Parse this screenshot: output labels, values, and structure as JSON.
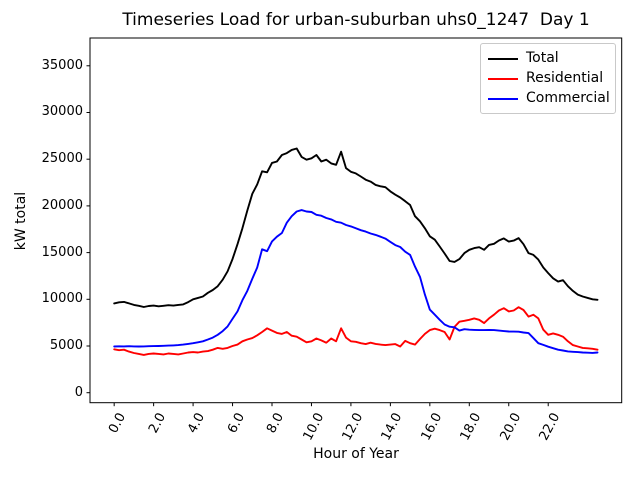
{
  "chart_data": {
    "type": "line",
    "title": "Timeseries Load for urban-suburban uhs0_1247  Day 1",
    "xlabel": "Hour of Year",
    "ylabel": "kW total",
    "grid": false,
    "legend_position": "upper right",
    "x_start": 0,
    "x_step": 0.25,
    "xlim": [
      -1.225,
      25.725
    ],
    "ylim": [
      -1070,
      37975
    ],
    "xtick_values": [
      0,
      2,
      4,
      6,
      8,
      10,
      12,
      14,
      16,
      18,
      20,
      22
    ],
    "xtick_labels": [
      "0.0",
      "2.0",
      "4.0",
      "6.0",
      "8.0",
      "10.0",
      "12.0",
      "14.0",
      "16.0",
      "18.0",
      "20.0",
      "22.0"
    ],
    "ytick_values": [
      0,
      5000,
      10000,
      15000,
      20000,
      25000,
      30000,
      35000
    ],
    "ytick_labels": [
      "0",
      "5000",
      "10000",
      "15000",
      "20000",
      "25000",
      "30000",
      "35000"
    ],
    "series": [
      {
        "name": "Total",
        "color": "#000000",
        "values": [
          9560,
          9680,
          9720,
          9560,
          9400,
          9300,
          9180,
          9280,
          9330,
          9250,
          9300,
          9370,
          9330,
          9400,
          9450,
          9700,
          10000,
          10150,
          10300,
          10700,
          11000,
          11400,
          12100,
          13000,
          14300,
          15900,
          17600,
          19500,
          21300,
          22300,
          23700,
          23600,
          24600,
          24750,
          25450,
          25650,
          26000,
          26150,
          25250,
          24950,
          25100,
          25450,
          24750,
          24950,
          24550,
          24400,
          25800,
          24050,
          23650,
          23480,
          23150,
          22800,
          22600,
          22250,
          22100,
          22000,
          21550,
          21200,
          20900,
          20500,
          20100,
          18900,
          18350,
          17600,
          16750,
          16380,
          15650,
          14900,
          14100,
          14000,
          14300,
          14950,
          15300,
          15480,
          15580,
          15300,
          15820,
          15940,
          16300,
          16520,
          16180,
          16280,
          16550,
          15900,
          14950,
          14750,
          14250,
          13400,
          12800,
          12250,
          11900,
          12050,
          11400,
          10900,
          10500,
          10300,
          10150,
          10000,
          9950
        ]
      },
      {
        "name": "Residential",
        "color": "#ff0000",
        "values": [
          4650,
          4550,
          4600,
          4400,
          4250,
          4150,
          4050,
          4150,
          4200,
          4150,
          4100,
          4200,
          4150,
          4100,
          4200,
          4300,
          4350,
          4300,
          4400,
          4450,
          4600,
          4800,
          4700,
          4800,
          5000,
          5150,
          5500,
          5700,
          5850,
          6150,
          6500,
          6900,
          6650,
          6400,
          6300,
          6500,
          6100,
          6000,
          5700,
          5400,
          5500,
          5800,
          5600,
          5350,
          5800,
          5500,
          6900,
          5900,
          5500,
          5450,
          5300,
          5200,
          5350,
          5220,
          5150,
          5100,
          5150,
          5200,
          4950,
          5550,
          5300,
          5150,
          5750,
          6300,
          6700,
          6850,
          6700,
          6500,
          5700,
          7050,
          7600,
          7700,
          7800,
          7950,
          7800,
          7450,
          7950,
          8350,
          8800,
          9050,
          8700,
          8800,
          9150,
          8850,
          8150,
          8350,
          7950,
          6750,
          6200,
          6350,
          6200,
          6000,
          5500,
          5100,
          4950,
          4800,
          4750,
          4700,
          4600
        ]
      },
      {
        "name": "Commercial",
        "color": "#0000ff",
        "values": [
          4950,
          4970,
          4960,
          4980,
          4960,
          4950,
          4960,
          4980,
          4990,
          5000,
          5020,
          5040,
          5060,
          5100,
          5150,
          5220,
          5300,
          5400,
          5500,
          5700,
          5900,
          6200,
          6600,
          7100,
          7900,
          8700,
          9900,
          10900,
          12200,
          13400,
          15350,
          15150,
          16200,
          16700,
          17100,
          18200,
          18900,
          19400,
          19550,
          19400,
          19350,
          19050,
          18950,
          18700,
          18550,
          18300,
          18200,
          17950,
          17800,
          17600,
          17400,
          17250,
          17050,
          16900,
          16700,
          16500,
          16150,
          15800,
          15600,
          15100,
          14750,
          13500,
          12400,
          10500,
          8900,
          8350,
          7800,
          7300,
          7070,
          7000,
          6650,
          6800,
          6750,
          6720,
          6700,
          6700,
          6720,
          6700,
          6650,
          6600,
          6550,
          6540,
          6530,
          6450,
          6380,
          5850,
          5300,
          5120,
          4930,
          4760,
          4600,
          4520,
          4420,
          4380,
          4350,
          4300,
          4280,
          4260,
          4300
        ]
      }
    ]
  }
}
